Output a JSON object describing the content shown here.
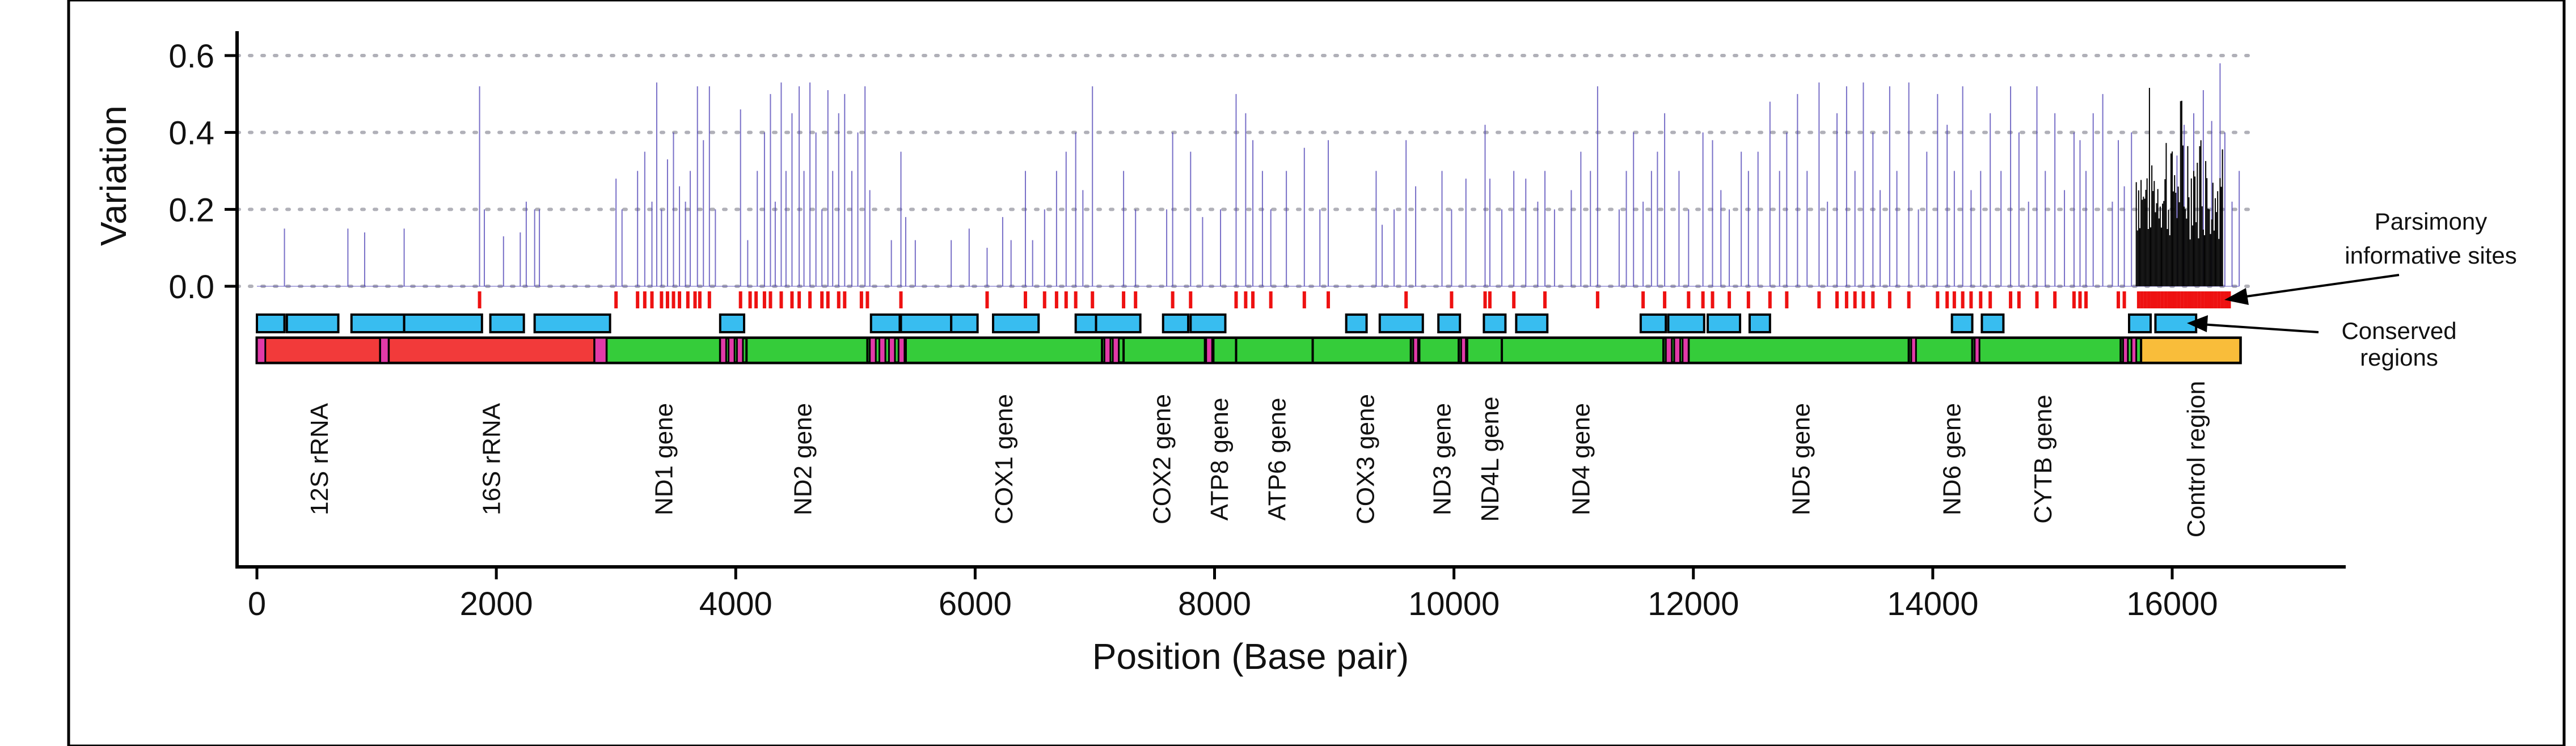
{
  "chart_data": {
    "type": "line",
    "title": "",
    "xlabel": "Position (Base pair)",
    "ylabel": "Variation",
    "xlim": [
      -100,
      17400
    ],
    "ylim": [
      0,
      0.65
    ],
    "xticks": [
      0,
      2000,
      4000,
      6000,
      8000,
      10000,
      12000,
      14000,
      16000
    ],
    "xtick_labels": [
      "0",
      "2000",
      "4000",
      "6000",
      "8000",
      "10000",
      "12000",
      "14000",
      "16000"
    ],
    "yticks": [
      0.0,
      0.2,
      0.4,
      0.6
    ],
    "ytick_labels": [
      "0.0",
      "0.2",
      "0.4",
      "0.6"
    ],
    "grid": "horizontal dotted at y ticks",
    "colors": {
      "variation": "#4b3fb5",
      "control_variation": "#000000",
      "parsimony": "#ee1111",
      "conserved": "#38bdf0",
      "rrna": "#f23a3a",
      "gene": "#35cc3a",
      "control": "#f9bd3a",
      "trna": "#e23aa8",
      "grid": "#b0b0b8"
    },
    "variation_peaks": [
      [
        230,
        0.15
      ],
      [
        760,
        0.15
      ],
      [
        900,
        0.14
      ],
      [
        1230,
        0.15
      ],
      [
        1860,
        0.52
      ],
      [
        1900,
        0.2
      ],
      [
        2060,
        0.13
      ],
      [
        2200,
        0.14
      ],
      [
        2250,
        0.22
      ],
      [
        2320,
        0.2
      ],
      [
        2360,
        0.2
      ],
      [
        3000,
        0.28
      ],
      [
        3050,
        0.2
      ],
      [
        3180,
        0.3
      ],
      [
        3240,
        0.35
      ],
      [
        3300,
        0.22
      ],
      [
        3340,
        0.53
      ],
      [
        3380,
        0.2
      ],
      [
        3430,
        0.33
      ],
      [
        3480,
        0.4
      ],
      [
        3530,
        0.26
      ],
      [
        3580,
        0.22
      ],
      [
        3620,
        0.3
      ],
      [
        3680,
        0.52
      ],
      [
        3730,
        0.38
      ],
      [
        3780,
        0.52
      ],
      [
        3830,
        0.2
      ],
      [
        4040,
        0.46
      ],
      [
        4100,
        0.12
      ],
      [
        4180,
        0.3
      ],
      [
        4240,
        0.4
      ],
      [
        4290,
        0.5
      ],
      [
        4330,
        0.22
      ],
      [
        4380,
        0.53
      ],
      [
        4420,
        0.3
      ],
      [
        4470,
        0.45
      ],
      [
        4530,
        0.52
      ],
      [
        4570,
        0.3
      ],
      [
        4620,
        0.53
      ],
      [
        4670,
        0.4
      ],
      [
        4720,
        0.2
      ],
      [
        4770,
        0.51
      ],
      [
        4810,
        0.3
      ],
      [
        4860,
        0.45
      ],
      [
        4910,
        0.5
      ],
      [
        4970,
        0.3
      ],
      [
        5020,
        0.4
      ],
      [
        5080,
        0.52
      ],
      [
        5120,
        0.25
      ],
      [
        5300,
        0.12
      ],
      [
        5380,
        0.35
      ],
      [
        5420,
        0.18
      ],
      [
        5500,
        0.12
      ],
      [
        5800,
        0.12
      ],
      [
        5950,
        0.15
      ],
      [
        6100,
        0.1
      ],
      [
        6230,
        0.18
      ],
      [
        6300,
        0.12
      ],
      [
        6420,
        0.3
      ],
      [
        6480,
        0.12
      ],
      [
        6580,
        0.2
      ],
      [
        6680,
        0.3
      ],
      [
        6760,
        0.35
      ],
      [
        6840,
        0.4
      ],
      [
        6900,
        0.25
      ],
      [
        6980,
        0.52
      ],
      [
        7240,
        0.3
      ],
      [
        7340,
        0.2
      ],
      [
        7600,
        0.2
      ],
      [
        7650,
        0.4
      ],
      [
        7800,
        0.35
      ],
      [
        7900,
        0.18
      ],
      [
        8050,
        0.2
      ],
      [
        8180,
        0.5
      ],
      [
        8260,
        0.45
      ],
      [
        8320,
        0.38
      ],
      [
        8400,
        0.3
      ],
      [
        8470,
        0.2
      ],
      [
        8600,
        0.3
      ],
      [
        8750,
        0.36
      ],
      [
        8880,
        0.2
      ],
      [
        8950,
        0.38
      ],
      [
        9350,
        0.3
      ],
      [
        9400,
        0.16
      ],
      [
        9500,
        0.2
      ],
      [
        9600,
        0.38
      ],
      [
        9680,
        0.26
      ],
      [
        9900,
        0.3
      ],
      [
        9980,
        0.2
      ],
      [
        10100,
        0.28
      ],
      [
        10260,
        0.42
      ],
      [
        10300,
        0.28
      ],
      [
        10400,
        0.2
      ],
      [
        10500,
        0.3
      ],
      [
        10600,
        0.28
      ],
      [
        10700,
        0.22
      ],
      [
        10760,
        0.3
      ],
      [
        10840,
        0.2
      ],
      [
        10980,
        0.25
      ],
      [
        11060,
        0.35
      ],
      [
        11140,
        0.3
      ],
      [
        11200,
        0.52
      ],
      [
        11380,
        0.2
      ],
      [
        11440,
        0.3
      ],
      [
        11500,
        0.4
      ],
      [
        11580,
        0.22
      ],
      [
        11650,
        0.3
      ],
      [
        11700,
        0.35
      ],
      [
        11760,
        0.45
      ],
      [
        11880,
        0.3
      ],
      [
        11960,
        0.2
      ],
      [
        12080,
        0.4
      ],
      [
        12160,
        0.38
      ],
      [
        12230,
        0.25
      ],
      [
        12300,
        0.2
      ],
      [
        12400,
        0.35
      ],
      [
        12460,
        0.3
      ],
      [
        12540,
        0.35
      ],
      [
        12640,
        0.48
      ],
      [
        12720,
        0.3
      ],
      [
        12780,
        0.4
      ],
      [
        12870,
        0.5
      ],
      [
        12950,
        0.3
      ],
      [
        13050,
        0.53
      ],
      [
        13120,
        0.22
      ],
      [
        13200,
        0.45
      ],
      [
        13280,
        0.52
      ],
      [
        13350,
        0.3
      ],
      [
        13420,
        0.53
      ],
      [
        13500,
        0.4
      ],
      [
        13560,
        0.25
      ],
      [
        13640,
        0.52
      ],
      [
        13700,
        0.3
      ],
      [
        13800,
        0.53
      ],
      [
        13880,
        0.2
      ],
      [
        13950,
        0.35
      ],
      [
        14040,
        0.5
      ],
      [
        14120,
        0.42
      ],
      [
        14180,
        0.3
      ],
      [
        14250,
        0.52
      ],
      [
        14320,
        0.25
      ],
      [
        14400,
        0.3
      ],
      [
        14480,
        0.45
      ],
      [
        14570,
        0.3
      ],
      [
        14650,
        0.52
      ],
      [
        14720,
        0.4
      ],
      [
        14800,
        0.22
      ],
      [
        14870,
        0.52
      ],
      [
        14940,
        0.3
      ],
      [
        15020,
        0.45
      ],
      [
        15100,
        0.25
      ],
      [
        15180,
        0.4
      ],
      [
        15230,
        0.38
      ],
      [
        15280,
        0.3
      ],
      [
        15340,
        0.45
      ],
      [
        15420,
        0.5
      ],
      [
        15500,
        0.22
      ],
      [
        15550,
        0.38
      ],
      [
        15600,
        0.26
      ],
      [
        15660,
        0.4
      ],
      [
        16040,
        0.34
      ],
      [
        16100,
        0.42
      ],
      [
        16180,
        0.45
      ],
      [
        16260,
        0.51
      ],
      [
        16330,
        0.43
      ],
      [
        16400,
        0.58
      ],
      [
        16440,
        0.4
      ],
      [
        16500,
        0.22
      ],
      [
        16560,
        0.3
      ]
    ],
    "control_region_variation": [
      [
        15700,
        16420
      ],
      [
        0.12,
        0.55
      ]
    ],
    "parsimony_sites": [
      1860,
      3000,
      3180,
      3240,
      3300,
      3380,
      3430,
      3480,
      3530,
      3600,
      3660,
      3700,
      3780,
      4040,
      4120,
      4170,
      4240,
      4290,
      4380,
      4470,
      4530,
      4620,
      4720,
      4770,
      4860,
      4910,
      5050,
      5100,
      5380,
      6100,
      6420,
      6580,
      6680,
      6760,
      6840,
      6980,
      7240,
      7340,
      7650,
      7800,
      8180,
      8260,
      8320,
      8470,
      8750,
      8950,
      9600,
      9980,
      10260,
      10300,
      10500,
      10760,
      11200,
      11580,
      11760,
      11960,
      12080,
      12160,
      12300,
      12460,
      12640,
      12780,
      13050,
      13200,
      13280,
      13350,
      13420,
      13500,
      13640,
      13800,
      14040,
      14120,
      14180,
      14250,
      14320,
      14400,
      14480,
      14650,
      14720,
      14870,
      15020,
      15180,
      15230,
      15280,
      15550,
      15600
    ],
    "parsimony_dense_span": [
      15720,
      16500
    ],
    "conserved_regions": [
      [
        0,
        230
      ],
      [
        250,
        680
      ],
      [
        790,
        1230
      ],
      [
        1230,
        1880
      ],
      [
        1950,
        2230
      ],
      [
        2320,
        2950
      ],
      [
        3870,
        4070
      ],
      [
        5130,
        5370
      ],
      [
        5380,
        5800
      ],
      [
        5800,
        6020
      ],
      [
        6150,
        6530
      ],
      [
        6840,
        7010
      ],
      [
        7010,
        7380
      ],
      [
        7570,
        7780
      ],
      [
        7800,
        8090
      ],
      [
        9100,
        9270
      ],
      [
        9380,
        9740
      ],
      [
        9870,
        10050
      ],
      [
        10250,
        10430
      ],
      [
        10520,
        10780
      ],
      [
        11560,
        11770
      ],
      [
        11790,
        12090
      ],
      [
        12120,
        12390
      ],
      [
        12470,
        12640
      ],
      [
        14160,
        14330
      ],
      [
        14410,
        14590
      ],
      [
        15640,
        15820
      ],
      [
        15860,
        16200
      ]
    ],
    "genome_segments": [
      {
        "start": 0,
        "end": 1030,
        "kind": "rrna"
      },
      {
        "start": 1100,
        "end": 2820,
        "kind": "rrna"
      },
      {
        "start": 2920,
        "end": 3870,
        "kind": "gene"
      },
      {
        "start": 4090,
        "end": 5100,
        "kind": "gene"
      },
      {
        "start": 5420,
        "end": 7060,
        "kind": "gene"
      },
      {
        "start": 7240,
        "end": 7920,
        "kind": "gene"
      },
      {
        "start": 7990,
        "end": 8180,
        "kind": "gene"
      },
      {
        "start": 8180,
        "end": 8820,
        "kind": "gene"
      },
      {
        "start": 8820,
        "end": 9640,
        "kind": "gene"
      },
      {
        "start": 9710,
        "end": 10040,
        "kind": "gene"
      },
      {
        "start": 10110,
        "end": 10400,
        "kind": "gene"
      },
      {
        "start": 10400,
        "end": 11750,
        "kind": "gene"
      },
      {
        "start": 11960,
        "end": 13800,
        "kind": "gene"
      },
      {
        "start": 13800,
        "end": 14330,
        "kind": "gene"
      },
      {
        "start": 14380,
        "end": 15570,
        "kind": "gene"
      },
      {
        "start": 15740,
        "end": 16570,
        "kind": "control"
      }
    ],
    "trna_blocks": [
      [
        0,
        70
      ],
      [
        1030,
        1100
      ],
      [
        2820,
        2920
      ],
      [
        3870,
        3920
      ],
      [
        3940,
        3990
      ],
      [
        4010,
        4060
      ],
      [
        5120,
        5170
      ],
      [
        5200,
        5250
      ],
      [
        5280,
        5330
      ],
      [
        5360,
        5410
      ],
      [
        7080,
        7130
      ],
      [
        7150,
        7200
      ],
      [
        7930,
        7980
      ],
      [
        9660,
        9700
      ],
      [
        10060,
        10100
      ],
      [
        11770,
        11820
      ],
      [
        11840,
        11890
      ],
      [
        11910,
        11960
      ],
      [
        13820,
        13860
      ],
      [
        14350,
        14390
      ],
      [
        15590,
        15630
      ],
      [
        15660,
        15700
      ]
    ],
    "gene_labels": [
      {
        "text": "12S rRNA",
        "pos": 520
      },
      {
        "text": "16S rRNA",
        "pos": 1960
      },
      {
        "text": "ND1 gene",
        "pos": 3400
      },
      {
        "text": "ND2 gene",
        "pos": 4560
      },
      {
        "text": "COX1 gene",
        "pos": 6240
      },
      {
        "text": "COX2 gene",
        "pos": 7560
      },
      {
        "text": "ATP8 gene",
        "pos": 8040
      },
      {
        "text": "ATP6 gene",
        "pos": 8520
      },
      {
        "text": "COX3 gene",
        "pos": 9260
      },
      {
        "text": "ND3 gene",
        "pos": 9900
      },
      {
        "text": "ND4L gene",
        "pos": 10300
      },
      {
        "text": "ND4 gene",
        "pos": 11060
      },
      {
        "text": "ND5 gene",
        "pos": 12900
      },
      {
        "text": "ND6 gene",
        "pos": 14160
      },
      {
        "text": "CYTB gene",
        "pos": 14920
      },
      {
        "text": "Control region",
        "pos": 16200
      }
    ],
    "annotations": [
      {
        "name": "parsimony",
        "lines": [
          "Parsimony",
          "informative sites"
        ]
      },
      {
        "name": "conserved",
        "lines": [
          "Conserved",
          "regions"
        ]
      }
    ]
  }
}
